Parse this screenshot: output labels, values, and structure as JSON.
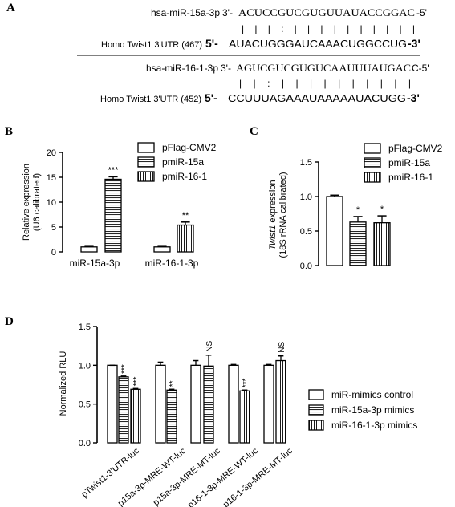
{
  "panel_a": {
    "label": "A",
    "pair1": {
      "mirna_name": "hsa-miR-15a-3p",
      "mirna_prefix": "3'-",
      "mirna_seq": "ACUCCGUCGUGUUAUACCGGAC",
      "mirna_suffix": "-5'",
      "match_line": "|  |    |  :  | | |    | | | | | | |",
      "utr_name": "Homo Twist1 3'UTR (467)",
      "utr_prefix": "5'-",
      "utr_seq": "AUACUGGGAUCAAACUGGCCUG",
      "utr_suffix": "-3'"
    },
    "pair2": {
      "mirna_name": "hsa-miR-16-1-3p",
      "mirna_prefix": "3'-",
      "mirna_seq": "AGUCGUCGUGUCAAUUUAUGAC",
      "mirna_suffix": "C-5'",
      "match_line": "|    |  :  |  |         | | | | | | | |",
      "utr_name": "Homo Twist1 3'UTR (452)",
      "utr_prefix": "5'-",
      "utr_seq": "CCUUUAGAAAUAAAAAUACUGG",
      "utr_suffix": "-3'"
    }
  },
  "chart_data": [
    {
      "panel": "B",
      "type": "bar",
      "ylabel_line1": "Relative expression",
      "ylabel_line2": "(U6 calibrated)",
      "ylim": [
        0,
        20
      ],
      "yticks": [
        "0",
        "5",
        "10",
        "15",
        "20"
      ],
      "categories": [
        "miR-15a-3p",
        "miR-16-1-3p"
      ],
      "series": [
        {
          "name": "pFlag-CMV2",
          "values": [
            1.0,
            1.0
          ],
          "errors": [
            0.1,
            0.1
          ]
        },
        {
          "name": "pmiR-15a",
          "values": [
            14.6,
            null
          ],
          "errors": [
            0.5,
            null
          ]
        },
        {
          "name": "pmiR-16-1",
          "values": [
            null,
            5.4
          ],
          "errors": [
            null,
            0.6
          ]
        }
      ],
      "annotations": [
        {
          "category": "miR-15a-3p",
          "series": "pmiR-15a",
          "text": "***"
        },
        {
          "category": "miR-16-1-3p",
          "series": "pmiR-16-1",
          "text": "**"
        }
      ]
    },
    {
      "panel": "C",
      "type": "bar",
      "ylabel_italic": "Twist1",
      "ylabel_rest": " expression",
      "ylabel_line2": "(18S rRNA calibrated)",
      "ylim": [
        0,
        1.5
      ],
      "yticks": [
        "0.0",
        "0.5",
        "1.0",
        "1.5"
      ],
      "series": [
        {
          "name": "pFlag-CMV2",
          "values": [
            1.0
          ],
          "errors": [
            0.02
          ]
        },
        {
          "name": "pmiR-15a",
          "values": [
            0.63
          ],
          "errors": [
            0.08
          ]
        },
        {
          "name": "pmiR-16-1",
          "values": [
            0.62
          ],
          "errors": [
            0.1
          ]
        }
      ],
      "annotations": [
        {
          "series": "pmiR-15a",
          "text": "*"
        },
        {
          "series": "pmiR-16-1",
          "text": "*"
        }
      ]
    },
    {
      "panel": "D",
      "type": "bar",
      "ylabel": "Normalized RLU",
      "ylim": [
        0,
        1.5
      ],
      "yticks": [
        "0.0",
        "0.5",
        "1.0",
        "1.5"
      ],
      "categories": [
        "pTwist1-3'UTR-luc",
        "p15a-3p-MRE-WT-luc",
        "p15a-3p-MRE-MT-luc",
        "p16-1-3p-MRE-WT-luc",
        "p16-1-3p-MRE-MT-luc"
      ],
      "series": [
        {
          "name": "miR-mimics control",
          "values": [
            1.0,
            1.0,
            1.0,
            1.0,
            1.0
          ],
          "errors": [
            0.0,
            0.04,
            0.06,
            0.01,
            0.01
          ]
        },
        {
          "name": "miR-15a-3p mimics",
          "values": [
            0.85,
            0.68,
            0.99,
            null,
            null
          ],
          "errors": [
            0.01,
            0.01,
            0.14,
            null,
            null
          ]
        },
        {
          "name": "miR-16-1-3p mimics",
          "values": [
            0.69,
            null,
            null,
            0.67,
            1.06
          ],
          "errors": [
            0.01,
            null,
            null,
            0.01,
            0.06
          ]
        }
      ],
      "annotations": [
        {
          "category": "pTwist1-3'UTR-luc",
          "series": "miR-15a-3p mimics",
          "text": "***"
        },
        {
          "category": "pTwist1-3'UTR-luc",
          "series": "miR-16-1-3p mimics",
          "text": "***"
        },
        {
          "category": "p15a-3p-MRE-WT-luc",
          "series": "miR-15a-3p mimics",
          "text": "**"
        },
        {
          "category": "p15a-3p-MRE-MT-luc",
          "series": "miR-15a-3p mimics",
          "text": "NS"
        },
        {
          "category": "p16-1-3p-MRE-WT-luc",
          "series": "miR-16-1-3p mimics",
          "text": "***"
        },
        {
          "category": "p16-1-3p-MRE-MT-luc",
          "series": "miR-16-1-3p mimics",
          "text": "NS"
        }
      ]
    }
  ]
}
